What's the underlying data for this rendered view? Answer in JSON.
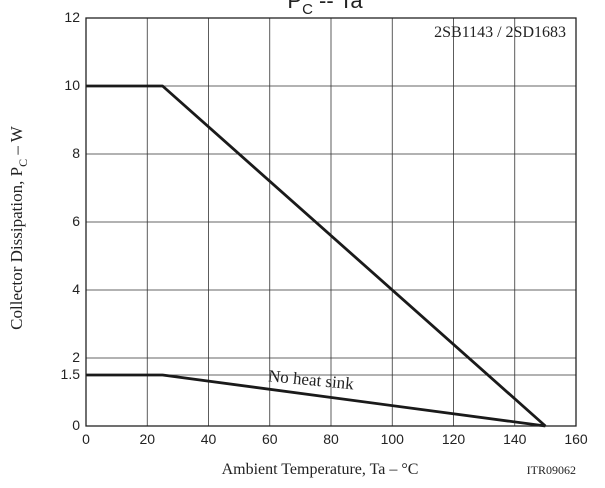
{
  "chart_data": {
    "type": "line",
    "title": "P",
    "title_subscript": "C",
    "title_rest": " -- Ta",
    "device_label": "2SB1143 / 2SD1683",
    "xlabel": "Ambient Temperature, Ta  –  °C",
    "ylabel": "Collector Dissipation, P",
    "ylabel_subscript": "C",
    "ylabel_rest": "  –  W",
    "code_label": "ITR09062",
    "xlim": [
      0,
      160
    ],
    "ylim": [
      0,
      12
    ],
    "x_ticks": [
      0,
      20,
      40,
      60,
      80,
      100,
      120,
      140,
      160
    ],
    "y_ticks": [
      0,
      1.5,
      2,
      4,
      6,
      8,
      10,
      12
    ],
    "x_tick_labels": [
      "0",
      "20",
      "40",
      "60",
      "80",
      "100",
      "120",
      "140",
      "160"
    ],
    "y_tick_labels": [
      "0",
      "1.5",
      "2",
      "4",
      "6",
      "8",
      "10",
      "12"
    ],
    "grid": true,
    "series": [
      {
        "name": "",
        "x": [
          0,
          25,
          150
        ],
        "y": [
          10,
          10,
          0
        ]
      },
      {
        "name": "No heat sink",
        "x": [
          0,
          25,
          150
        ],
        "y": [
          1.5,
          1.5,
          0
        ]
      }
    ],
    "annotation": {
      "text": "No heat sink",
      "x": 75,
      "y": 1.2
    }
  }
}
